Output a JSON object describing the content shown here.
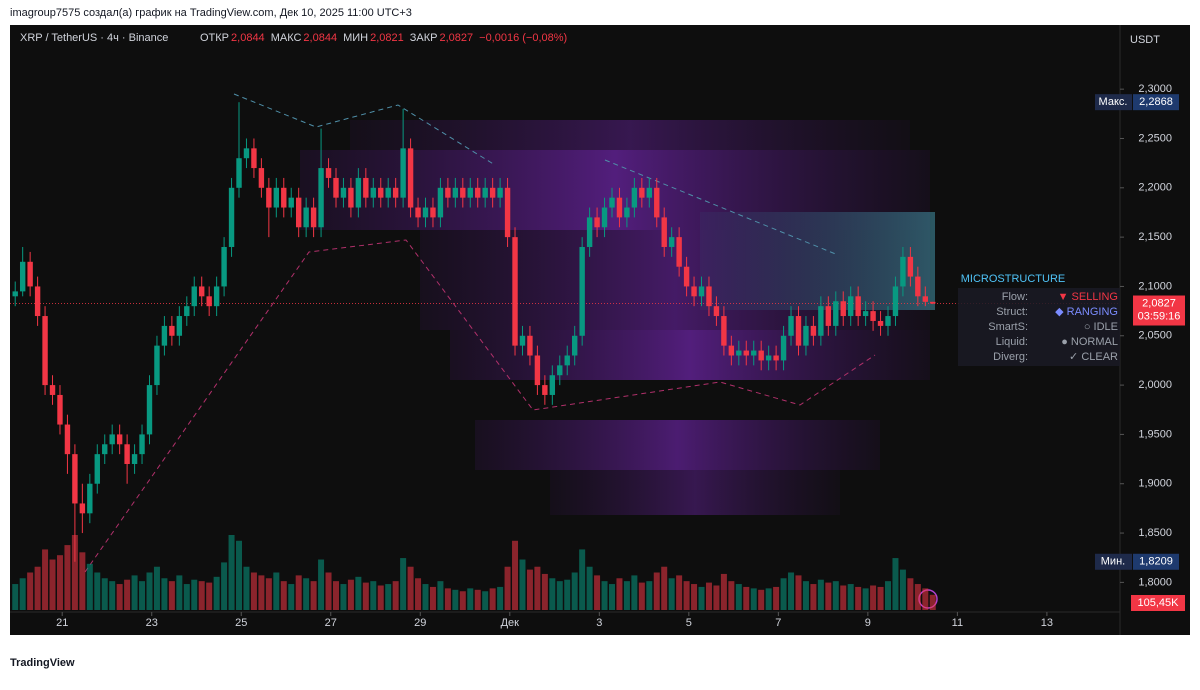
{
  "header": {
    "attribution": "imagroup7575 создал(а) график на TradingView.com, Дек 10, 2025 11:00 UTC+3"
  },
  "chart_data": {
    "type": "candlestick",
    "symbol": "XRP / TetherUS · 4ч · Binance",
    "ohlc_legend": [
      {
        "label": "ОТКР",
        "value": "2,0844"
      },
      {
        "label": "МАКС",
        "value": "2,0844"
      },
      {
        "label": "МИН",
        "value": "2,0821"
      },
      {
        "label": "ЗАКР",
        "value": "2,0827"
      }
    ],
    "change": "−0,0016 (−0,08%)",
    "currency": "USDT",
    "up_color": "#089981",
    "down_color": "#f23645",
    "xlim": [
      -0.7,
      148.1
    ],
    "ylim": [
      1.772,
      2.362
    ],
    "xticks": [
      {
        "value": 6.3,
        "label": "21"
      },
      {
        "value": 18.3,
        "label": "23"
      },
      {
        "value": 30.3,
        "label": "25"
      },
      {
        "value": 42.3,
        "label": "27"
      },
      {
        "value": 54.3,
        "label": "29"
      },
      {
        "value": 66.3,
        "label": "Дек"
      },
      {
        "value": 78.3,
        "label": "3"
      },
      {
        "value": 90.3,
        "label": "5"
      },
      {
        "value": 102.3,
        "label": "7"
      },
      {
        "value": 114.3,
        "label": "9"
      },
      {
        "value": 126.3,
        "label": "11"
      },
      {
        "value": 138.3,
        "label": "13"
      }
    ],
    "yticks": [
      {
        "value": 2.3,
        "label": "2,3000"
      },
      {
        "value": 2.25,
        "label": "2,2500"
      },
      {
        "value": 2.2,
        "label": "2,2000"
      },
      {
        "value": 2.15,
        "label": "2,1500"
      },
      {
        "value": 2.1,
        "label": "2,1000"
      },
      {
        "value": 2.05,
        "label": "2,0500"
      },
      {
        "value": 2.0,
        "label": "2,0000"
      },
      {
        "value": 1.95,
        "label": "1,9500"
      },
      {
        "value": 1.9,
        "label": "1,9000"
      },
      {
        "value": 1.85,
        "label": "1,8500"
      },
      {
        "value": 1.8,
        "label": "1,8000"
      }
    ],
    "open": [
      2.09,
      2.095,
      2.125,
      2.1,
      2.07,
      2.0,
      1.99,
      1.96,
      1.93,
      1.88,
      1.87,
      1.9,
      1.93,
      1.94,
      1.95,
      1.94,
      1.92,
      1.93,
      1.95,
      2.0,
      2.04,
      2.06,
      2.05,
      2.07,
      2.08,
      2.1,
      2.09,
      2.08,
      2.1,
      2.14,
      2.2,
      2.23,
      2.24,
      2.22,
      2.2,
      2.18,
      2.2,
      2.18,
      2.19,
      2.16,
      2.18,
      2.16,
      2.22,
      2.21,
      2.19,
      2.2,
      2.18,
      2.21,
      2.19,
      2.2,
      2.19,
      2.2,
      2.19,
      2.24,
      2.18,
      2.17,
      2.18,
      2.17,
      2.2,
      2.19,
      2.2,
      2.19,
      2.2,
      2.19,
      2.2,
      2.19,
      2.2,
      2.15,
      2.04,
      2.05,
      2.03,
      2.0,
      1.99,
      2.01,
      2.02,
      2.03,
      2.05,
      2.14,
      2.17,
      2.16,
      2.18,
      2.19,
      2.17,
      2.18,
      2.2,
      2.19,
      2.2,
      2.17,
      2.14,
      2.15,
      2.12,
      2.1,
      2.09,
      2.1,
      2.08,
      2.07,
      2.04,
      2.03,
      2.035,
      2.03,
      2.035,
      2.025,
      2.03,
      2.025,
      2.05,
      2.07,
      2.04,
      2.06,
      2.05,
      2.08,
      2.06,
      2.085,
      2.07,
      2.09,
      2.07,
      2.075,
      2.065,
      2.06,
      2.07,
      2.1,
      2.13,
      2.11,
      2.09,
      2.0844
    ],
    "high": [
      2.105,
      2.14,
      2.135,
      2.11,
      2.08,
      2.01,
      2.0,
      1.97,
      1.94,
      1.9,
      1.91,
      1.94,
      1.95,
      1.96,
      1.96,
      1.95,
      1.94,
      1.96,
      2.01,
      2.05,
      2.07,
      2.07,
      2.08,
      2.09,
      2.11,
      2.11,
      2.1,
      2.11,
      2.15,
      2.21,
      2.2868,
      2.25,
      2.25,
      2.23,
      2.21,
      2.21,
      2.21,
      2.2,
      2.2,
      2.19,
      2.19,
      2.26,
      2.23,
      2.22,
      2.21,
      2.21,
      2.22,
      2.22,
      2.21,
      2.21,
      2.21,
      2.21,
      2.28,
      2.25,
      2.19,
      2.19,
      2.19,
      2.21,
      2.21,
      2.21,
      2.21,
      2.21,
      2.21,
      2.21,
      2.21,
      2.21,
      2.21,
      2.16,
      2.06,
      2.06,
      2.04,
      2.01,
      2.02,
      2.03,
      2.04,
      2.06,
      2.15,
      2.18,
      2.18,
      2.19,
      2.2,
      2.2,
      2.19,
      2.21,
      2.21,
      2.21,
      2.21,
      2.18,
      2.16,
      2.16,
      2.13,
      2.11,
      2.11,
      2.11,
      2.09,
      2.08,
      2.05,
      2.045,
      2.045,
      2.045,
      2.045,
      2.04,
      2.04,
      2.06,
      2.08,
      2.08,
      2.07,
      2.07,
      2.09,
      2.09,
      2.095,
      2.095,
      2.1,
      2.1,
      2.085,
      2.085,
      2.075,
      2.08,
      2.11,
      2.14,
      2.14,
      2.12,
      2.1,
      2.0844
    ],
    "low": [
      2.08,
      2.09,
      2.09,
      2.06,
      1.99,
      1.98,
      1.95,
      1.91,
      1.8209,
      1.85,
      1.86,
      1.89,
      1.92,
      1.93,
      1.93,
      1.9,
      1.91,
      1.92,
      1.94,
      1.99,
      2.03,
      2.04,
      2.04,
      2.06,
      2.07,
      2.08,
      2.07,
      2.07,
      2.09,
      2.13,
      2.19,
      2.22,
      2.21,
      2.19,
      2.15,
      2.17,
      2.17,
      2.17,
      2.15,
      2.15,
      2.15,
      2.15,
      2.2,
      2.18,
      2.18,
      2.17,
      2.17,
      2.18,
      2.18,
      2.18,
      2.18,
      2.18,
      2.18,
      2.17,
      2.16,
      2.16,
      2.16,
      2.16,
      2.18,
      2.18,
      2.18,
      2.18,
      2.18,
      2.18,
      2.18,
      2.18,
      2.14,
      2.03,
      2.03,
      2.02,
      1.99,
      1.98,
      1.98,
      2.0,
      2.01,
      2.02,
      2.04,
      2.13,
      2.15,
      2.15,
      2.17,
      2.16,
      2.16,
      2.17,
      2.18,
      2.18,
      2.16,
      2.13,
      2.13,
      2.11,
      2.09,
      2.08,
      2.08,
      2.07,
      2.06,
      2.03,
      2.02,
      2.02,
      2.02,
      2.02,
      2.015,
      2.015,
      2.015,
      2.015,
      2.04,
      2.03,
      2.03,
      2.04,
      2.04,
      2.05,
      2.05,
      2.06,
      2.06,
      2.06,
      2.06,
      2.055,
      2.05,
      2.05,
      2.06,
      2.09,
      2.1,
      2.08,
      2.08,
      2.0821
    ],
    "close": [
      2.095,
      2.125,
      2.1,
      2.07,
      2.0,
      1.99,
      1.96,
      1.93,
      1.88,
      1.87,
      1.9,
      1.93,
      1.94,
      1.95,
      1.94,
      1.92,
      1.93,
      1.95,
      2.0,
      2.04,
      2.06,
      2.05,
      2.07,
      2.08,
      2.1,
      2.09,
      2.08,
      2.1,
      2.14,
      2.2,
      2.23,
      2.24,
      2.22,
      2.2,
      2.18,
      2.2,
      2.18,
      2.19,
      2.16,
      2.18,
      2.16,
      2.22,
      2.21,
      2.19,
      2.2,
      2.18,
      2.21,
      2.19,
      2.2,
      2.19,
      2.2,
      2.19,
      2.24,
      2.18,
      2.17,
      2.18,
      2.17,
      2.2,
      2.19,
      2.2,
      2.19,
      2.2,
      2.19,
      2.2,
      2.19,
      2.2,
      2.15,
      2.04,
      2.05,
      2.03,
      2.0,
      1.99,
      2.01,
      2.02,
      2.03,
      2.05,
      2.14,
      2.17,
      2.16,
      2.18,
      2.19,
      2.17,
      2.18,
      2.2,
      2.19,
      2.2,
      2.17,
      2.14,
      2.15,
      2.12,
      2.1,
      2.09,
      2.1,
      2.08,
      2.07,
      2.04,
      2.03,
      2.035,
      2.03,
      2.035,
      2.025,
      2.03,
      2.025,
      2.05,
      2.07,
      2.04,
      2.06,
      2.05,
      2.08,
      2.06,
      2.085,
      2.07,
      2.09,
      2.07,
      2.075,
      2.065,
      2.06,
      2.07,
      2.1,
      2.13,
      2.11,
      2.09,
      2.0844,
      2.0827
    ],
    "volume": [
      180,
      220,
      260,
      300,
      420,
      350,
      380,
      450,
      520,
      400,
      320,
      260,
      220,
      200,
      180,
      210,
      240,
      200,
      260,
      300,
      220,
      200,
      240,
      180,
      210,
      200,
      190,
      230,
      330,
      520,
      480,
      300,
      260,
      240,
      220,
      260,
      200,
      180,
      240,
      220,
      200,
      350,
      260,
      200,
      180,
      210,
      230,
      190,
      200,
      170,
      180,
      200,
      360,
      300,
      220,
      180,
      160,
      200,
      150,
      140,
      130,
      150,
      140,
      130,
      150,
      160,
      300,
      480,
      350,
      280,
      300,
      250,
      220,
      200,
      210,
      260,
      420,
      300,
      240,
      200,
      180,
      220,
      200,
      240,
      190,
      200,
      260,
      300,
      220,
      240,
      200,
      180,
      160,
      190,
      170,
      250,
      200,
      180,
      160,
      150,
      140,
      150,
      160,
      220,
      260,
      240,
      200,
      180,
      210,
      190,
      200,
      170,
      180,
      160,
      150,
      170,
      160,
      200,
      360,
      280,
      220,
      180,
      150,
      105.45
    ],
    "volume_label": "105,45K",
    "max_marker": {
      "name": "Макс.",
      "value": 2.2868,
      "label": "2,2868"
    },
    "min_marker": {
      "name": "Мин.",
      "value": 1.8209,
      "label": "1,8209"
    },
    "last_price": {
      "value": 2.0827,
      "label": "2,0827",
      "countdown": "03:59:16"
    },
    "indicator": {
      "title": "MICROSTRUCTURE",
      "rows": [
        [
          "Flow:",
          "▼ SELLING"
        ],
        [
          "Struct:",
          "◆ RANGING"
        ],
        [
          "SmartS:",
          "○ IDLE"
        ],
        [
          "Liquid:",
          "● NORMAL"
        ],
        [
          "Diverg:",
          "✓ CLEAR"
        ]
      ]
    }
  },
  "logo": "TradingView"
}
